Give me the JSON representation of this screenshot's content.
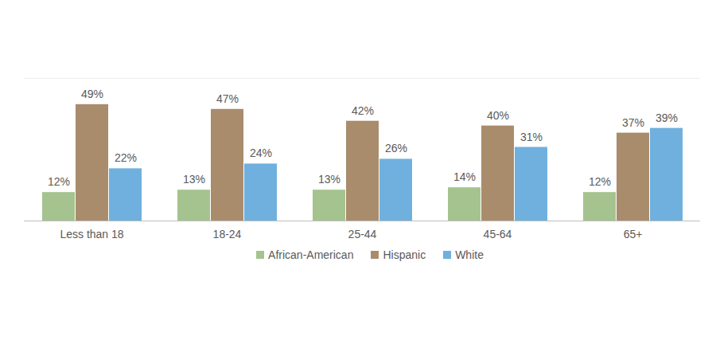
{
  "chart_data": {
    "type": "bar",
    "categories": [
      "Less than 18",
      "18-24",
      "25-44",
      "45-64",
      "65+"
    ],
    "series": [
      {
        "name": "African-American",
        "color": "#a5c38e",
        "values": [
          12,
          13,
          13,
          14,
          12
        ],
        "value_labels": [
          "12%",
          "13%",
          "13%",
          "14%",
          "12%"
        ]
      },
      {
        "name": "Hispanic",
        "color": "#a98c6c",
        "values": [
          49,
          47,
          42,
          40,
          37
        ],
        "value_labels": [
          "49%",
          "47%",
          "42%",
          "40%",
          "37%"
        ]
      },
      {
        "name": "White",
        "color": "#6fb0de",
        "values": [
          22,
          24,
          26,
          31,
          39
        ],
        "value_labels": [
          "22%",
          "24%",
          "26%",
          "31%",
          "39%"
        ]
      }
    ],
    "ylim": [
      0,
      60
    ],
    "yticks": [],
    "data_labels": true,
    "tick_labels": "x",
    "legend": "bottom"
  }
}
